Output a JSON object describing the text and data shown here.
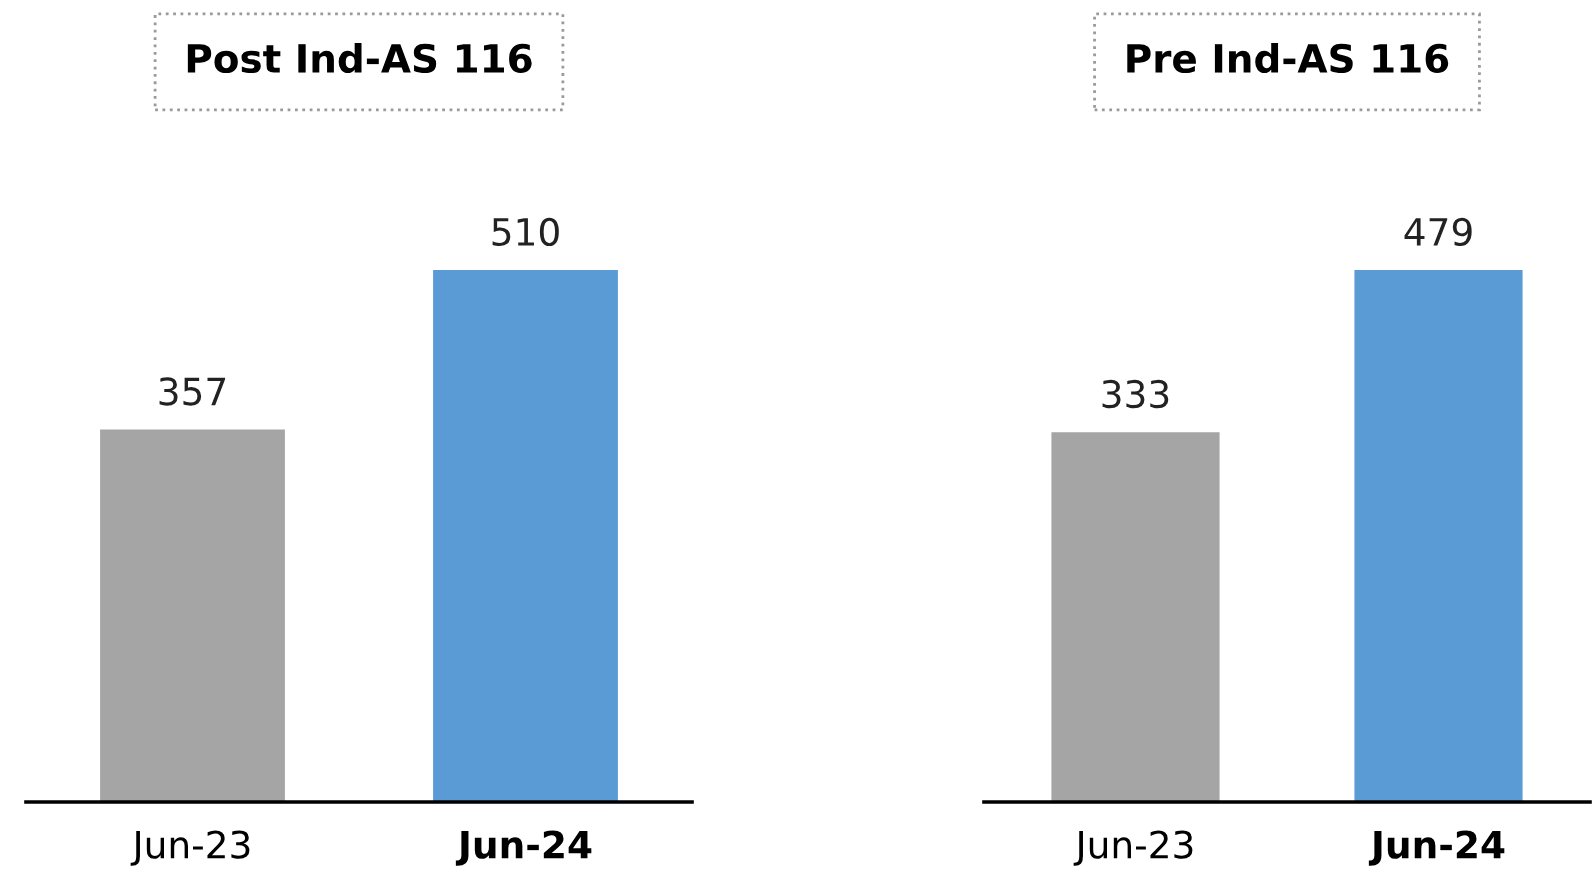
{
  "chart_data": [
    {
      "type": "bar",
      "title": "Post Ind-AS 116",
      "categories": [
        "Jun-23",
        "Jun-24"
      ],
      "values": [
        357,
        510
      ],
      "colors": [
        "#a5a5a5",
        "#5b9bd5"
      ],
      "data_labels": true
    },
    {
      "type": "bar",
      "title": "Pre Ind-AS 116",
      "categories": [
        "Jun-23",
        "Jun-24"
      ],
      "values": [
        333,
        479
      ],
      "colors": [
        "#a5a5a5",
        "#5b9bd5"
      ],
      "data_labels": true
    }
  ]
}
